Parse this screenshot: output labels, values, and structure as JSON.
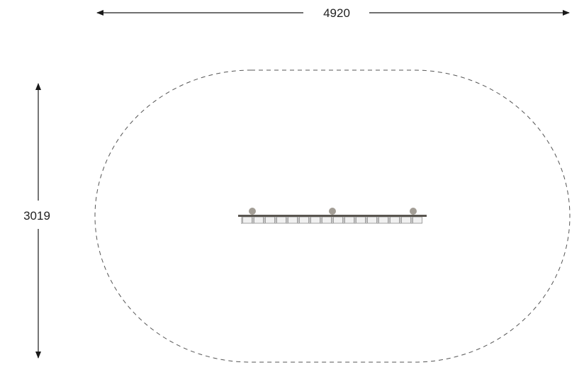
{
  "dimensions": {
    "width_label": "4920",
    "height_label": "3019"
  },
  "colors": {
    "line": "#1a1a1a",
    "safety_zone": "#555555",
    "bar": "#5a5650",
    "post": "#a39e96",
    "roller_fill": "#f0f0f0",
    "roller_stroke": "#8a8a8a"
  }
}
